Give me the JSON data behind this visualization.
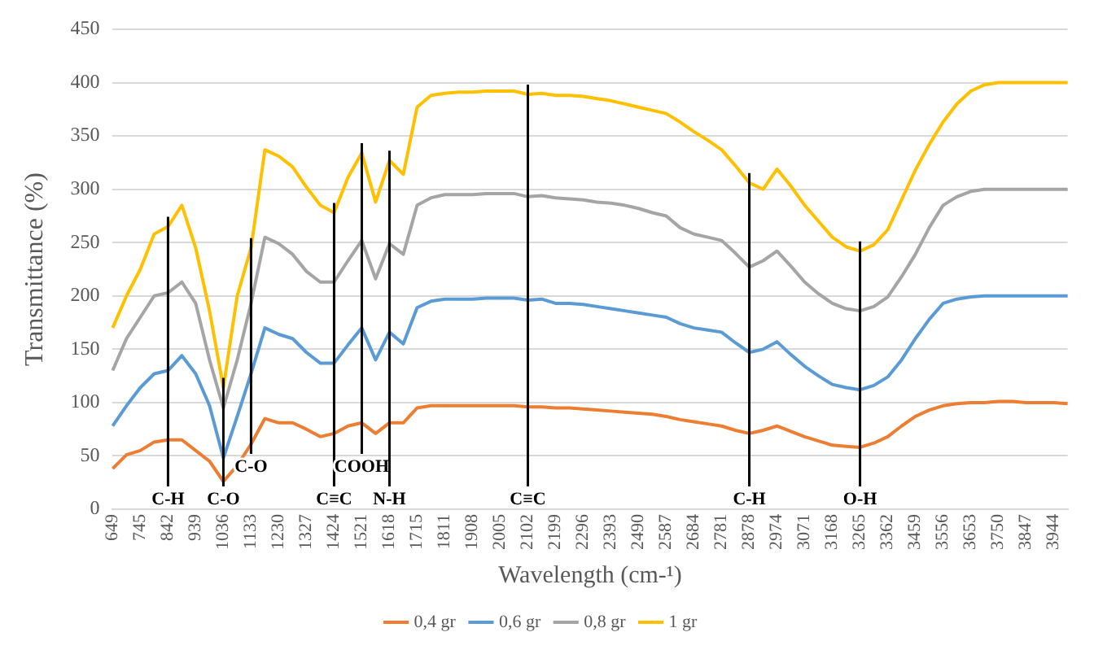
{
  "chart_data": {
    "type": "line",
    "xlabel": "Wavelength (cm-¹)",
    "ylabel": "Transmittance (%)",
    "categories": [
      "649",
      null,
      "745",
      null,
      "842",
      null,
      "939",
      null,
      "1036",
      null,
      "1133",
      null,
      "1230",
      null,
      "1327",
      null,
      "1424",
      null,
      "1521",
      null,
      "1618",
      null,
      "1715",
      null,
      "1811",
      null,
      "1908",
      null,
      "2005",
      null,
      "2102",
      null,
      "2199",
      null,
      "2296",
      null,
      "2393",
      null,
      "2490",
      null,
      "2587",
      null,
      "2684",
      null,
      "2781",
      null,
      "2878",
      null,
      "2974",
      null,
      "3071",
      null,
      "3168",
      null,
      "3265",
      null,
      "3362",
      null,
      "3459",
      null,
      "3556",
      null,
      "3653",
      null,
      "3750",
      null,
      "3847",
      null,
      "3944",
      null
    ],
    "series": [
      {
        "name": "0,4 gr",
        "color": "#ed7d31",
        "values": [
          38,
          51,
          55,
          63,
          65,
          65,
          55,
          45,
          26,
          41,
          61,
          85,
          81,
          81,
          75,
          68,
          71,
          78,
          81,
          71,
          81,
          81,
          95,
          97,
          97,
          97,
          97,
          97,
          97,
          97,
          96,
          96,
          95,
          95,
          94,
          93,
          92,
          91,
          90,
          89,
          87,
          84,
          82,
          80,
          78,
          74,
          71,
          74,
          78,
          73,
          68,
          64,
          60,
          59,
          58,
          62,
          68,
          78,
          87,
          93,
          97,
          99,
          100,
          100,
          101,
          101,
          100,
          100,
          100,
          99
        ]
      },
      {
        "name": "0,6 gr",
        "color": "#5b9bd5",
        "values": [
          78,
          97,
          114,
          127,
          130,
          144,
          127,
          97,
          48,
          87,
          127,
          170,
          164,
          160,
          147,
          137,
          137,
          154,
          170,
          140,
          166,
          155,
          189,
          195,
          197,
          197,
          197,
          198,
          198,
          198,
          196,
          197,
          193,
          193,
          192,
          190,
          188,
          186,
          184,
          182,
          180,
          174,
          170,
          168,
          166,
          156,
          147,
          150,
          157,
          145,
          134,
          125,
          117,
          114,
          112,
          116,
          124,
          140,
          160,
          178,
          193,
          197,
          199,
          200,
          200,
          200,
          200,
          200,
          200,
          200
        ]
      },
      {
        "name": "0,8 gr",
        "color": "#a5a5a5",
        "values": [
          130,
          160,
          180,
          200,
          203,
          213,
          193,
          140,
          95,
          140,
          193,
          255,
          249,
          239,
          223,
          213,
          213,
          233,
          252,
          216,
          249,
          239,
          285,
          292,
          295,
          295,
          295,
          296,
          296,
          296,
          293,
          294,
          292,
          291,
          290,
          288,
          287,
          285,
          282,
          278,
          275,
          264,
          258,
          255,
          252,
          240,
          227,
          233,
          242,
          228,
          213,
          202,
          193,
          188,
          186,
          190,
          199,
          218,
          239,
          264,
          285,
          293,
          298,
          300,
          300,
          300,
          300,
          300,
          300,
          300
        ]
      },
      {
        "name": "1 gr",
        "color": "#ffc000",
        "values": [
          170,
          200,
          225,
          258,
          265,
          285,
          245,
          186,
          114,
          200,
          245,
          337,
          331,
          321,
          302,
          285,
          278,
          311,
          334,
          288,
          327,
          314,
          377,
          388,
          390,
          391,
          391,
          392,
          392,
          392,
          389,
          390,
          388,
          388,
          387,
          385,
          383,
          380,
          377,
          374,
          371,
          363,
          354,
          346,
          337,
          322,
          306,
          300,
          319,
          303,
          285,
          270,
          255,
          246,
          242,
          248,
          262,
          290,
          318,
          342,
          363,
          380,
          392,
          398,
          400,
          400,
          400,
          400,
          400,
          400
        ]
      }
    ],
    "ylim": [
      0,
      450
    ],
    "yticks": [
      0,
      50,
      100,
      150,
      200,
      250,
      300,
      350,
      400,
      450
    ],
    "grid": "y",
    "legend": "bottom",
    "marker": "none",
    "line_style": "solid",
    "ref_lines": [
      {
        "axis": "x",
        "value": "842",
        "label": "C-H"
      },
      {
        "axis": "x",
        "value": "1036",
        "label": "C-O"
      },
      {
        "axis": "x",
        "value": "1133",
        "label": "C-O"
      },
      {
        "axis": "x",
        "value": "1424",
        "label": "C≡C"
      },
      {
        "axis": "x",
        "value": "1521",
        "label": "COOH"
      },
      {
        "axis": "x",
        "value": "1618",
        "label": "N-H"
      },
      {
        "axis": "x",
        "value": "2102",
        "label": "C≡C"
      },
      {
        "axis": "x",
        "value": "2878",
        "label": "C-H"
      },
      {
        "axis": "x",
        "value": "3265",
        "label": "O-H"
      }
    ]
  }
}
